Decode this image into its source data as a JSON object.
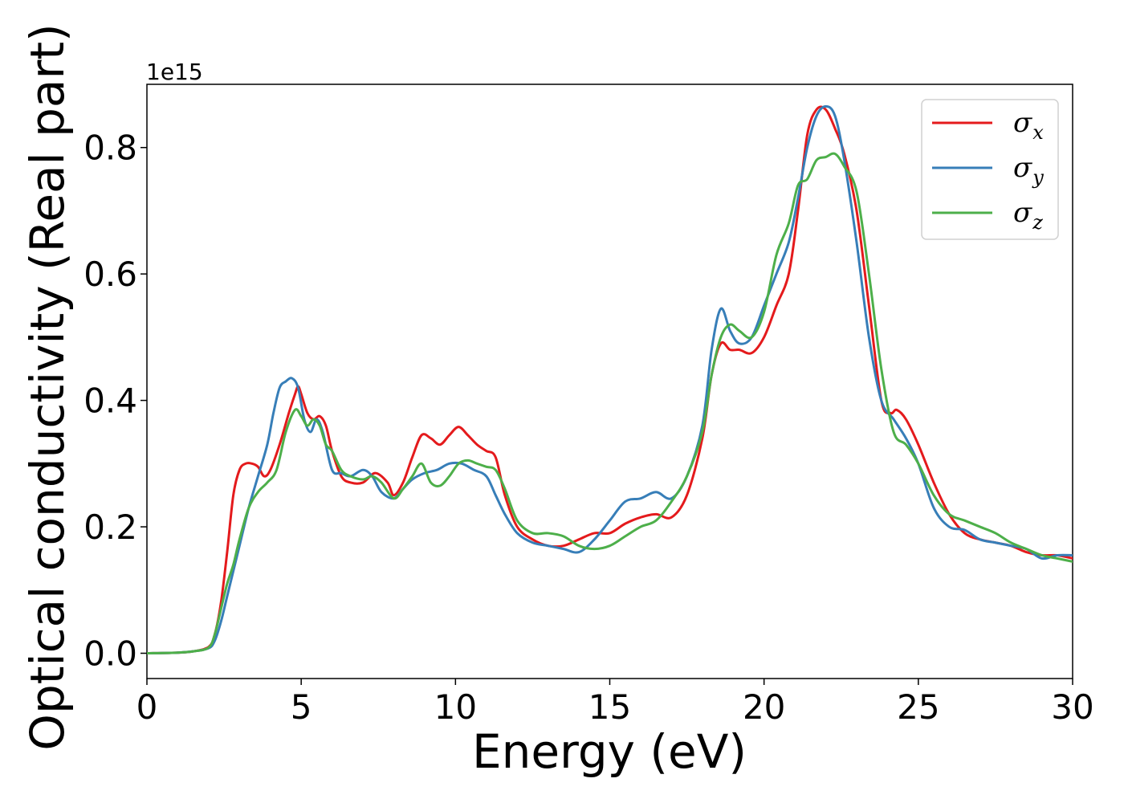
{
  "chart_data": {
    "type": "line",
    "xlabel": "Energy (eV)",
    "ylabel": "Optical conductivity (Real part)",
    "y_scale_label": "1e15",
    "xlim": [
      0,
      30
    ],
    "ylim": [
      -0.04,
      0.9
    ],
    "xticks": [
      0,
      5,
      10,
      15,
      20,
      25,
      30
    ],
    "yticks": [
      0.0,
      0.2,
      0.4,
      0.6,
      0.8
    ],
    "xtick_labels": [
      "0",
      "5",
      "10",
      "15",
      "20",
      "25",
      "30"
    ],
    "ytick_labels": [
      "0.0",
      "0.2",
      "0.4",
      "0.6",
      "0.8"
    ],
    "grid": false,
    "legend_position": "top-right",
    "series": [
      {
        "name": "σx",
        "legend_base": "σ",
        "legend_sub": "x",
        "color": "#e41a1c",
        "x": [
          0,
          1.0,
          1.5,
          2.0,
          2.2,
          2.4,
          2.6,
          2.8,
          3.0,
          3.2,
          3.4,
          3.6,
          3.8,
          4.0,
          4.3,
          4.6,
          4.8,
          4.9,
          5.0,
          5.2,
          5.4,
          5.6,
          5.8,
          6.0,
          6.3,
          6.6,
          7.0,
          7.4,
          7.8,
          8.0,
          8.3,
          8.6,
          8.9,
          9.2,
          9.5,
          9.8,
          10.1,
          10.4,
          10.7,
          11.0,
          11.3,
          11.6,
          12.0,
          12.5,
          13.0,
          13.5,
          14.0,
          14.5,
          15.0,
          15.5,
          16.0,
          16.5,
          17.0,
          17.5,
          18.0,
          18.3,
          18.6,
          18.9,
          19.2,
          19.6,
          20.0,
          20.4,
          20.8,
          21.1,
          21.4,
          21.7,
          22.0,
          22.3,
          22.6,
          23.0,
          23.4,
          23.8,
          24.1,
          24.3,
          24.6,
          25.0,
          25.5,
          26.0,
          26.5,
          27.0,
          27.5,
          28.0,
          28.5,
          29.0,
          29.5,
          30.0
        ],
        "y": [
          0.0,
          0.001,
          0.003,
          0.01,
          0.03,
          0.08,
          0.16,
          0.25,
          0.29,
          0.3,
          0.3,
          0.295,
          0.28,
          0.29,
          0.33,
          0.38,
          0.41,
          0.422,
          0.41,
          0.38,
          0.37,
          0.375,
          0.36,
          0.32,
          0.28,
          0.27,
          0.27,
          0.285,
          0.27,
          0.25,
          0.27,
          0.31,
          0.345,
          0.34,
          0.33,
          0.345,
          0.358,
          0.345,
          0.33,
          0.32,
          0.31,
          0.25,
          0.2,
          0.18,
          0.17,
          0.17,
          0.18,
          0.19,
          0.19,
          0.205,
          0.215,
          0.22,
          0.215,
          0.25,
          0.34,
          0.44,
          0.49,
          0.48,
          0.48,
          0.475,
          0.5,
          0.55,
          0.6,
          0.7,
          0.82,
          0.86,
          0.86,
          0.83,
          0.79,
          0.7,
          0.55,
          0.4,
          0.38,
          0.385,
          0.37,
          0.33,
          0.27,
          0.22,
          0.19,
          0.18,
          0.175,
          0.17,
          0.16,
          0.155,
          0.155,
          0.15
        ]
      },
      {
        "name": "σy",
        "legend_base": "σ",
        "legend_sub": "y",
        "color": "#377eb8",
        "x": [
          0,
          1.0,
          1.5,
          2.0,
          2.2,
          2.4,
          2.6,
          2.8,
          3.0,
          3.3,
          3.6,
          3.9,
          4.1,
          4.3,
          4.5,
          4.7,
          4.9,
          5.1,
          5.3,
          5.5,
          5.7,
          6.0,
          6.3,
          6.6,
          7.0,
          7.3,
          7.6,
          8.0,
          8.3,
          8.6,
          9.0,
          9.4,
          9.8,
          10.2,
          10.6,
          11.0,
          11.3,
          11.6,
          12.0,
          12.5,
          13.0,
          13.5,
          14.0,
          14.5,
          15.0,
          15.5,
          16.0,
          16.5,
          17.0,
          17.5,
          18.0,
          18.3,
          18.6,
          18.9,
          19.2,
          19.6,
          20.0,
          20.4,
          20.8,
          21.1,
          21.4,
          21.7,
          22.0,
          22.3,
          22.6,
          23.0,
          23.4,
          23.8,
          24.2,
          24.6,
          25.0,
          25.5,
          26.0,
          26.5,
          27.0,
          27.5,
          28.0,
          28.5,
          29.0,
          29.5,
          30.0
        ],
        "y": [
          0.0,
          0.001,
          0.003,
          0.008,
          0.02,
          0.05,
          0.09,
          0.13,
          0.17,
          0.23,
          0.28,
          0.33,
          0.38,
          0.42,
          0.43,
          0.435,
          0.42,
          0.37,
          0.35,
          0.37,
          0.35,
          0.29,
          0.285,
          0.28,
          0.29,
          0.28,
          0.255,
          0.245,
          0.26,
          0.275,
          0.285,
          0.29,
          0.3,
          0.3,
          0.29,
          0.28,
          0.25,
          0.22,
          0.19,
          0.175,
          0.17,
          0.165,
          0.16,
          0.18,
          0.21,
          0.24,
          0.245,
          0.255,
          0.245,
          0.28,
          0.36,
          0.48,
          0.545,
          0.51,
          0.49,
          0.5,
          0.55,
          0.6,
          0.65,
          0.72,
          0.8,
          0.85,
          0.865,
          0.85,
          0.78,
          0.65,
          0.5,
          0.4,
          0.37,
          0.34,
          0.3,
          0.23,
          0.2,
          0.195,
          0.18,
          0.175,
          0.17,
          0.165,
          0.15,
          0.155,
          0.155
        ]
      },
      {
        "name": "σz",
        "legend_base": "σ",
        "legend_sub": "z",
        "color": "#4daf4a",
        "x": [
          0,
          1.0,
          1.5,
          2.0,
          2.2,
          2.4,
          2.6,
          2.8,
          3.0,
          3.3,
          3.6,
          3.9,
          4.2,
          4.5,
          4.8,
          5.0,
          5.2,
          5.4,
          5.6,
          5.8,
          6.0,
          6.3,
          6.6,
          7.0,
          7.3,
          7.6,
          8.0,
          8.3,
          8.6,
          8.9,
          9.2,
          9.5,
          9.8,
          10.1,
          10.4,
          10.7,
          11.0,
          11.3,
          11.6,
          12.0,
          12.5,
          13.0,
          13.5,
          14.0,
          14.5,
          15.0,
          15.5,
          16.0,
          16.5,
          17.0,
          17.5,
          18.0,
          18.3,
          18.6,
          18.9,
          19.2,
          19.6,
          20.0,
          20.4,
          20.8,
          21.1,
          21.4,
          21.7,
          22.0,
          22.3,
          22.6,
          23.0,
          23.4,
          23.8,
          24.2,
          24.6,
          25.0,
          25.5,
          26.0,
          26.5,
          27.0,
          27.5,
          28.0,
          28.5,
          29.0,
          29.5,
          30.0
        ],
        "y": [
          0.0,
          0.001,
          0.003,
          0.009,
          0.03,
          0.07,
          0.11,
          0.14,
          0.18,
          0.23,
          0.255,
          0.27,
          0.29,
          0.35,
          0.385,
          0.375,
          0.36,
          0.37,
          0.36,
          0.33,
          0.32,
          0.29,
          0.28,
          0.275,
          0.28,
          0.27,
          0.245,
          0.26,
          0.28,
          0.3,
          0.27,
          0.265,
          0.28,
          0.3,
          0.305,
          0.3,
          0.295,
          0.29,
          0.26,
          0.21,
          0.19,
          0.19,
          0.185,
          0.17,
          0.165,
          0.17,
          0.185,
          0.2,
          0.21,
          0.24,
          0.28,
          0.35,
          0.44,
          0.5,
          0.52,
          0.51,
          0.5,
          0.54,
          0.63,
          0.68,
          0.74,
          0.75,
          0.78,
          0.785,
          0.79,
          0.77,
          0.73,
          0.6,
          0.45,
          0.35,
          0.33,
          0.3,
          0.25,
          0.22,
          0.21,
          0.2,
          0.19,
          0.175,
          0.165,
          0.155,
          0.15,
          0.145
        ]
      }
    ]
  }
}
